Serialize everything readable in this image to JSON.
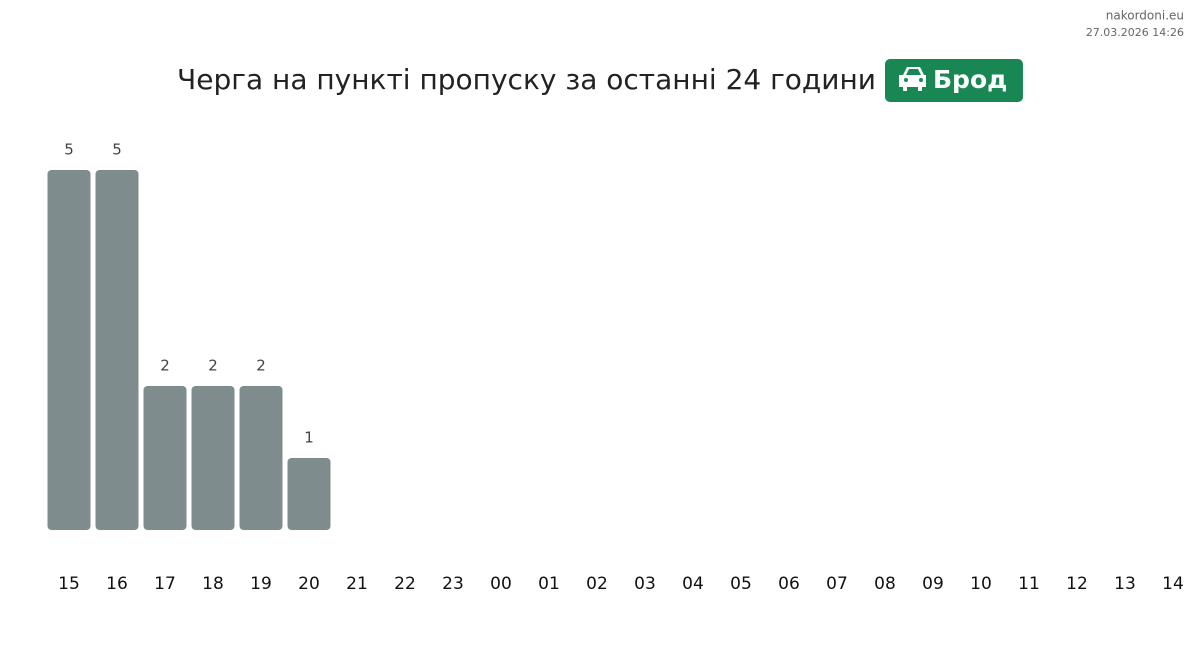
{
  "chart_data": {
    "type": "bar",
    "title": "Черга на пункті пропуску за останні 24 години",
    "badge": "Брод",
    "source": "nakordoni.eu",
    "timestamp": "27.03.2026 14:26",
    "categories": [
      "15",
      "16",
      "17",
      "18",
      "19",
      "20",
      "21",
      "22",
      "23",
      "00",
      "01",
      "02",
      "03",
      "04",
      "05",
      "06",
      "07",
      "08",
      "09",
      "10",
      "11",
      "12",
      "13",
      "14"
    ],
    "values": [
      5,
      5,
      2,
      2,
      2,
      1,
      null,
      null,
      null,
      null,
      null,
      null,
      null,
      null,
      null,
      null,
      null,
      null,
      null,
      null,
      null,
      null,
      null,
      null
    ],
    "color": "#7f8c8d"
  }
}
